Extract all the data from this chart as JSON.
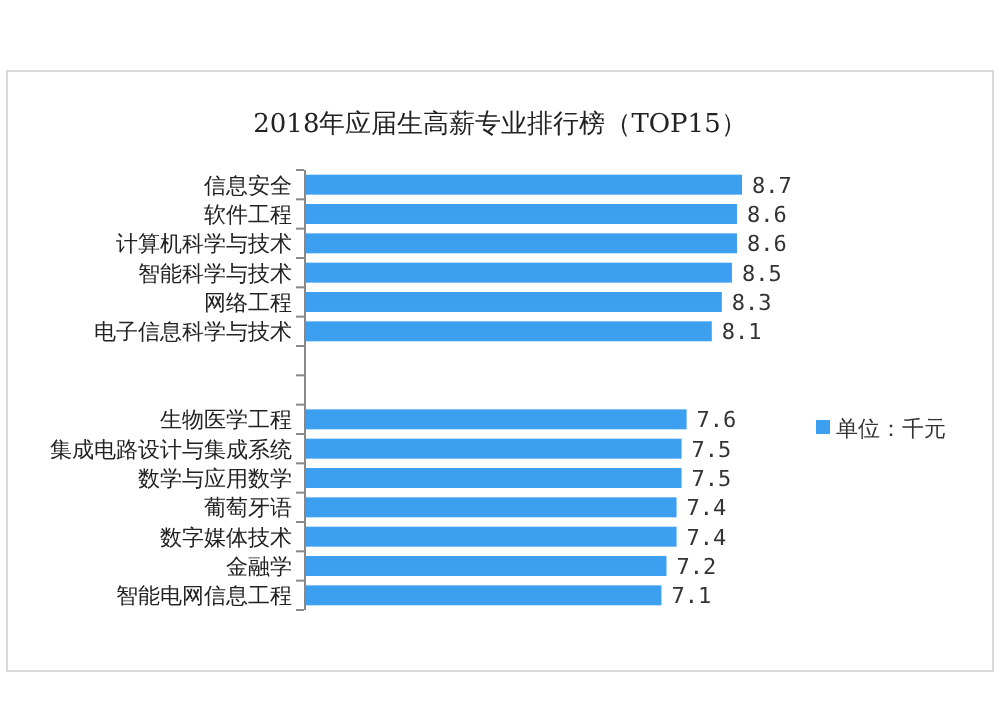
{
  "chart_data": {
    "type": "bar",
    "orientation": "horizontal",
    "title": "2018年应届生高薪专业排行榜（TOP15）",
    "categories": [
      "信息安全",
      "软件工程",
      "计算机科学与技术",
      "智能科学与技术",
      "网络工程",
      "电子信息科学与技术",
      null,
      null,
      "生物医学工程",
      "集成电路设计与集成系统",
      "数学与应用数学",
      "葡萄牙语",
      "数字媒体技术",
      "金融学",
      "智能电网信息工程"
    ],
    "series": [
      {
        "name": "单位：千元",
        "color": "#3d9ff0",
        "values": [
          8.7,
          8.6,
          8.6,
          8.5,
          8.3,
          8.1,
          null,
          null,
          7.6,
          7.5,
          7.5,
          7.4,
          7.4,
          7.2,
          7.1
        ]
      }
    ],
    "data_labels": true,
    "legend": "bottom right"
  }
}
